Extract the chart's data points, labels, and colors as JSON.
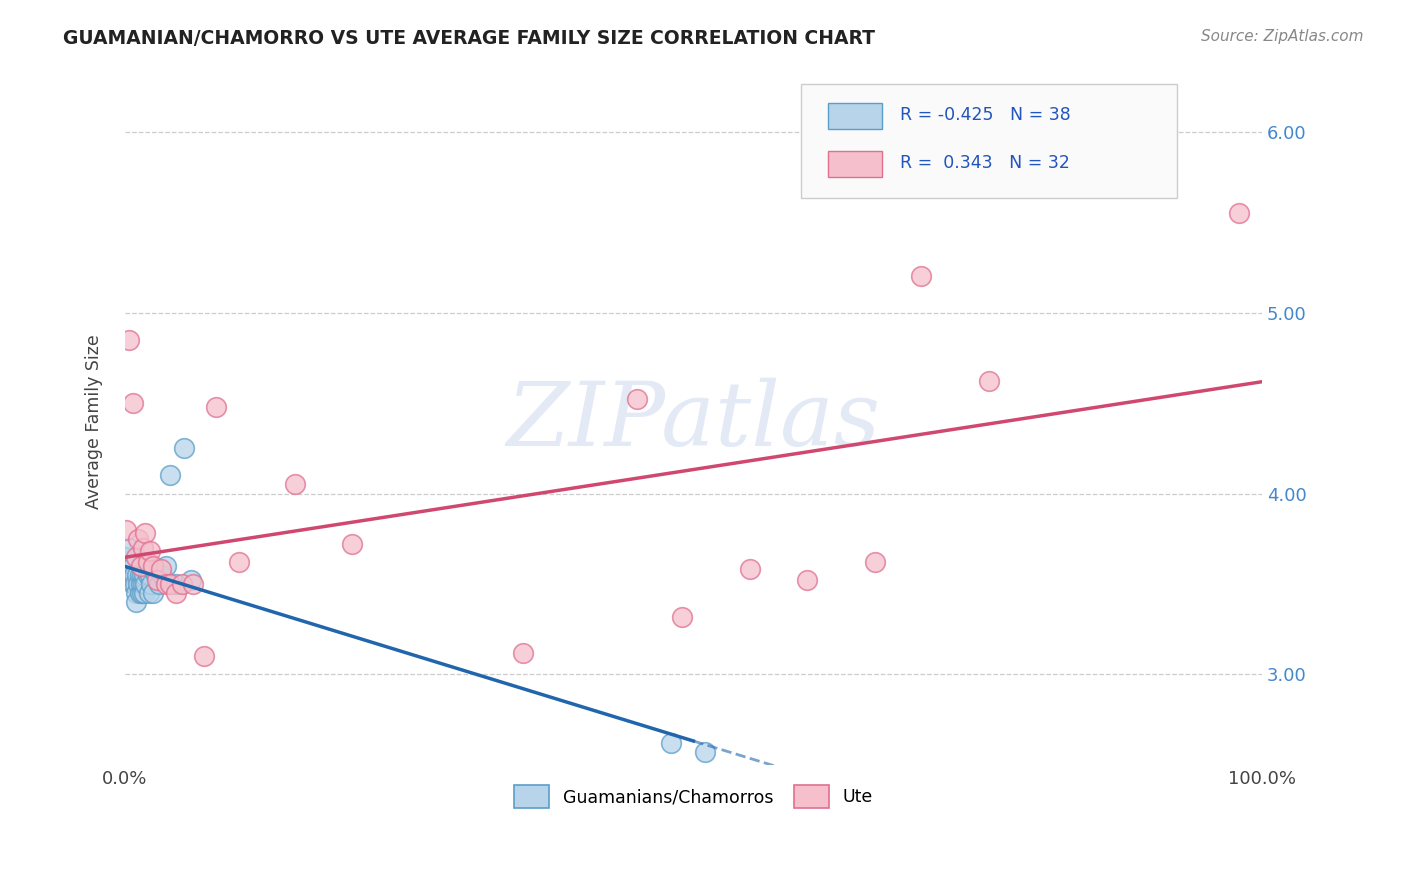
{
  "title": "GUAMANIAN/CHAMORRO VS UTE AVERAGE FAMILY SIZE CORRELATION CHART",
  "source": "Source: ZipAtlas.com",
  "ylabel": "Average Family Size",
  "xlim": [
    0.0,
    1.0
  ],
  "ylim": [
    2.5,
    6.3
  ],
  "yticks": [
    3.0,
    4.0,
    5.0,
    6.0
  ],
  "xtick_vals": [
    0.0,
    1.0
  ],
  "xtick_labels": [
    "0.0%",
    "100.0%"
  ],
  "legend_labels": [
    "Guamanians/Chamorros",
    "Ute"
  ],
  "r_blue": "-0.425",
  "n_blue": "38",
  "r_pink": "0.343",
  "n_pink": "32",
  "blue_face": "#b8d4ea",
  "blue_edge": "#5b9ec9",
  "blue_line": "#2166ac",
  "pink_face": "#f5c0cc",
  "pink_edge": "#e07090",
  "pink_line": "#d04870",
  "bg_color": "#ffffff",
  "grid_color": "#cccccc",
  "ytick_color": "#4488cc",
  "watermark": "ZIPatlas",
  "watermark_color": "#ccd9ee",
  "blue_x": [
    0.001,
    0.003,
    0.004,
    0.005,
    0.006,
    0.007,
    0.007,
    0.008,
    0.009,
    0.01,
    0.01,
    0.011,
    0.012,
    0.013,
    0.013,
    0.014,
    0.015,
    0.015,
    0.016,
    0.017,
    0.017,
    0.018,
    0.019,
    0.02,
    0.021,
    0.022,
    0.023,
    0.025,
    0.027,
    0.03,
    0.033,
    0.036,
    0.04,
    0.045,
    0.052,
    0.058,
    0.48,
    0.51
  ],
  "blue_y": [
    3.65,
    3.55,
    3.7,
    3.6,
    3.55,
    3.5,
    3.6,
    3.55,
    3.5,
    3.45,
    3.4,
    3.55,
    3.5,
    3.45,
    3.55,
    3.5,
    3.55,
    3.45,
    3.5,
    3.45,
    3.55,
    3.5,
    3.6,
    3.55,
    3.45,
    3.55,
    3.5,
    3.45,
    3.55,
    3.5,
    3.55,
    3.6,
    4.1,
    3.5,
    4.25,
    3.52,
    2.62,
    2.57
  ],
  "pink_x": [
    0.001,
    0.004,
    0.007,
    0.01,
    0.012,
    0.014,
    0.016,
    0.018,
    0.02,
    0.022,
    0.025,
    0.028,
    0.032,
    0.036,
    0.04,
    0.045,
    0.05,
    0.06,
    0.07,
    0.08,
    0.1,
    0.15,
    0.2,
    0.35,
    0.45,
    0.49,
    0.55,
    0.6,
    0.66,
    0.7,
    0.76,
    0.98
  ],
  "pink_y": [
    3.8,
    4.85,
    4.5,
    3.65,
    3.75,
    3.6,
    3.7,
    3.78,
    3.62,
    3.68,
    3.6,
    3.52,
    3.58,
    3.5,
    3.5,
    3.45,
    3.5,
    3.5,
    3.1,
    4.48,
    3.62,
    4.05,
    3.72,
    3.12,
    4.52,
    3.32,
    3.58,
    3.52,
    3.62,
    5.2,
    4.62,
    5.55
  ]
}
